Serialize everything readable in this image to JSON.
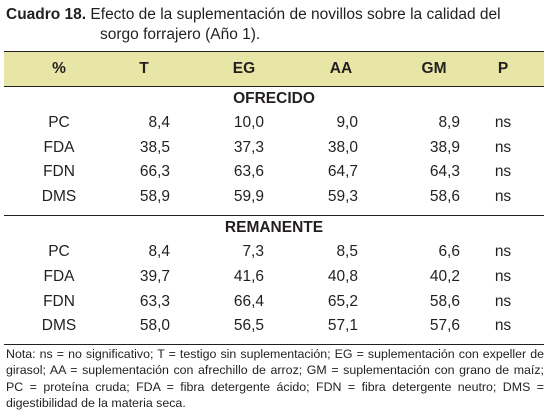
{
  "caption": {
    "label": "Cuadro 18.",
    "line1": "Efecto de la suplementación de novillos sobre la calidad del",
    "line2": "sorgo forrajero (Año 1)."
  },
  "table": {
    "headers": [
      "%",
      "T",
      "EG",
      "AA",
      "GM",
      "P"
    ],
    "sections": [
      {
        "title": "OFRECIDO",
        "rows": [
          [
            "PC",
            "8,4",
            "10,0",
            "9,0",
            "8,9",
            "ns"
          ],
          [
            "FDA",
            "38,5",
            "37,3",
            "38,0",
            "38,9",
            "ns"
          ],
          [
            "FDN",
            "66,3",
            "63,6",
            "64,7",
            "64,3",
            "ns"
          ],
          [
            "DMS",
            "58,9",
            "59,9",
            "59,3",
            "58,6",
            "ns"
          ]
        ]
      },
      {
        "title": "REMANENTE",
        "rows": [
          [
            "PC",
            "8,4",
            "7,3",
            "8,5",
            "6,6",
            "ns"
          ],
          [
            "FDA",
            "39,7",
            "41,6",
            "40,8",
            "40,2",
            "ns"
          ],
          [
            "FDN",
            "63,3",
            "66,4",
            "65,2",
            "58,6",
            "ns"
          ],
          [
            "DMS",
            "58,0",
            "56,5",
            "57,1",
            "57,6",
            "ns"
          ]
        ]
      }
    ]
  },
  "note": "Nota: ns = no significativo; T = testigo sin suplementación; EG = suplementación con expeller de girasol; AA = suplementación con afrechillo de arroz; GM = suplementación con grano de maíz; PC = proteína cruda; FDA = fibra detergente ácido; FDN = fibra detergente neutro; DMS = digestibilidad de la materia seca.",
  "colors": {
    "header_fill": "#e8e6a6",
    "text": "#231f20"
  }
}
